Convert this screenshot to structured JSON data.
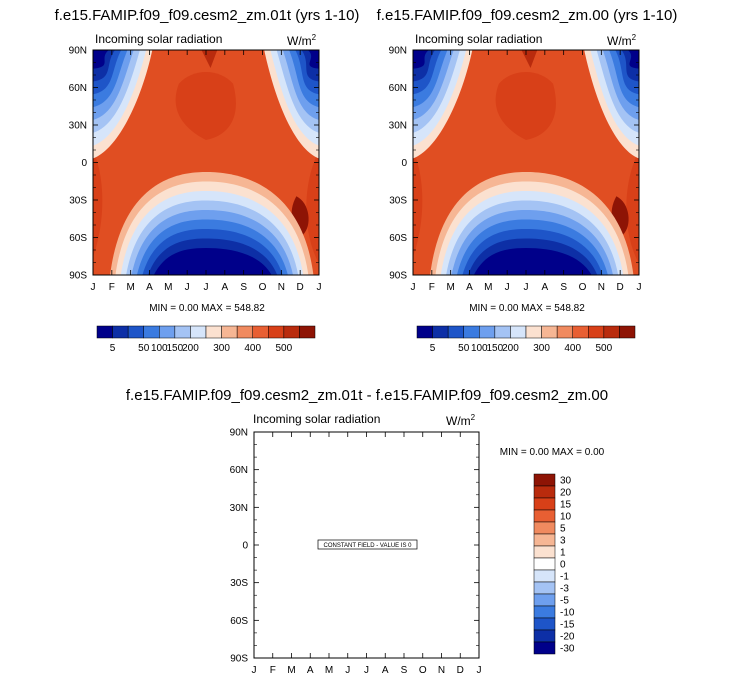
{
  "chart_data": [
    {
      "type": "contour",
      "title": "f.e15.FAMIP.f09_f09.cesm2_zm.01t (yrs 1-10)",
      "subtitle": "Incoming solar radiation",
      "units": "W/m",
      "units_sup": "2",
      "x_ticks": [
        "J",
        "F",
        "M",
        "A",
        "M",
        "J",
        "J",
        "A",
        "S",
        "O",
        "N",
        "D",
        "J"
      ],
      "y_ticks": [
        "90N",
        "60N",
        "30N",
        "0",
        "30S",
        "60S",
        "90S"
      ],
      "minmax": "MIN =   0.00 MAX = 548.82",
      "colorbar_labels": [
        "5",
        "50",
        "100",
        "150",
        "200",
        "300",
        "400",
        "500"
      ]
    },
    {
      "type": "contour",
      "title": "f.e15.FAMIP.f09_f09.cesm2_zm.00 (yrs 1-10)",
      "subtitle": "Incoming solar radiation",
      "units": "W/m",
      "units_sup": "2",
      "x_ticks": [
        "J",
        "F",
        "M",
        "A",
        "M",
        "J",
        "J",
        "A",
        "S",
        "O",
        "N",
        "D",
        "J"
      ],
      "y_ticks": [
        "90N",
        "60N",
        "30N",
        "0",
        "30S",
        "60S",
        "90S"
      ],
      "minmax": "MIN =   0.00 MAX = 548.82",
      "colorbar_labels": [
        "5",
        "50",
        "100",
        "150",
        "200",
        "300",
        "400",
        "500"
      ]
    },
    {
      "type": "contour",
      "title": "f.e15.FAMIP.f09_f09.cesm2_zm.01t - f.e15.FAMIP.f09_f09.cesm2_zm.00",
      "subtitle": "Incoming solar radiation",
      "units": "W/m",
      "units_sup": "2",
      "x_ticks": [
        "J",
        "F",
        "M",
        "A",
        "M",
        "J",
        "J",
        "A",
        "S",
        "O",
        "N",
        "D",
        "J"
      ],
      "y_ticks": [
        "90N",
        "60N",
        "30N",
        "0",
        "30S",
        "60S",
        "90S"
      ],
      "minmax": "MIN =   0.00 MAX =   0.00",
      "note": "CONSTANT FIELD - VALUE IS 0",
      "colorbar_labels": [
        "30",
        "20",
        "15",
        "10",
        "5",
        "3",
        "1",
        "0",
        "-1",
        "-3",
        "-5",
        "-10",
        "-15",
        "-20",
        "-30"
      ]
    }
  ],
  "colors": {
    "seq": [
      "#00008a",
      "#0d2fa6",
      "#1e55c8",
      "#3b7be0",
      "#6e9fee",
      "#a4c3f4",
      "#d6e5fa",
      "#fbe1d0",
      "#f6b694",
      "#f08a5f",
      "#e85f33",
      "#d84018",
      "#b92b0d",
      "#8e1405"
    ],
    "diff": [
      "#00008a",
      "#0d2fa6",
      "#1e55c8",
      "#3b7be0",
      "#6e9fee",
      "#a4c3f4",
      "#d6e5fa",
      "#ffffff",
      "#fbe1d0",
      "#f6b694",
      "#f08a5f",
      "#e85f33",
      "#d84018",
      "#b92b0d",
      "#8e1405"
    ]
  }
}
